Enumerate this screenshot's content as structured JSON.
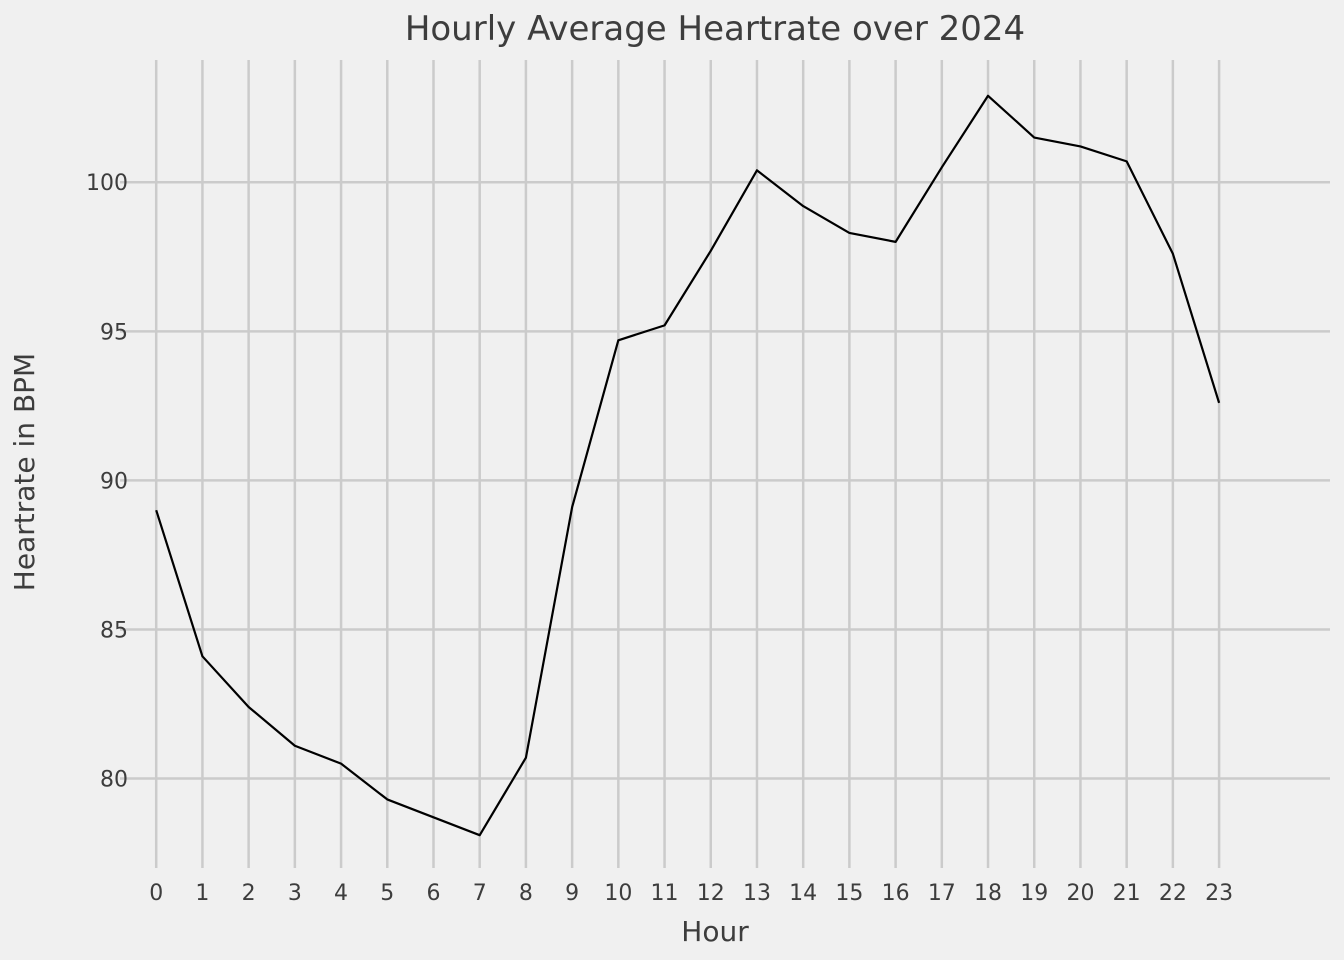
{
  "chart_data": {
    "type": "line",
    "title": "Hourly Average Heartrate over 2024",
    "xlabel": "Hour",
    "ylabel": "Heartrate in BPM",
    "x": [
      0,
      1,
      2,
      3,
      4,
      5,
      6,
      7,
      8,
      9,
      10,
      11,
      12,
      13,
      14,
      15,
      16,
      17,
      18,
      19,
      20,
      21,
      22,
      23
    ],
    "series": [
      {
        "values": [
          89.0,
          84.1,
          82.4,
          81.1,
          80.5,
          79.3,
          78.7,
          78.1,
          80.7,
          89.1,
          94.7,
          95.2,
          97.7,
          100.4,
          99.2,
          98.3,
          98.0,
          100.5,
          102.9,
          101.5,
          101.2,
          100.7,
          97.6,
          92.6
        ],
        "color": "#000000"
      }
    ],
    "xticks": [
      "0",
      "1",
      "2",
      "3",
      "4",
      "5",
      "6",
      "7",
      "8",
      "9",
      "10",
      "11",
      "12",
      "13",
      "14",
      "15",
      "16",
      "17",
      "18",
      "19",
      "20",
      "21",
      "22",
      "23"
    ],
    "yticks": [
      "80",
      "85",
      "90",
      "95",
      "100"
    ],
    "xlim": [
      -1.0,
      25.4
    ],
    "ylim": [
      77.0,
      104.1
    ],
    "grid": true,
    "legend": "none",
    "background": "#f0f0f0",
    "grid_color": "#cbcbcb",
    "text_color": "#3d3d3d"
  }
}
